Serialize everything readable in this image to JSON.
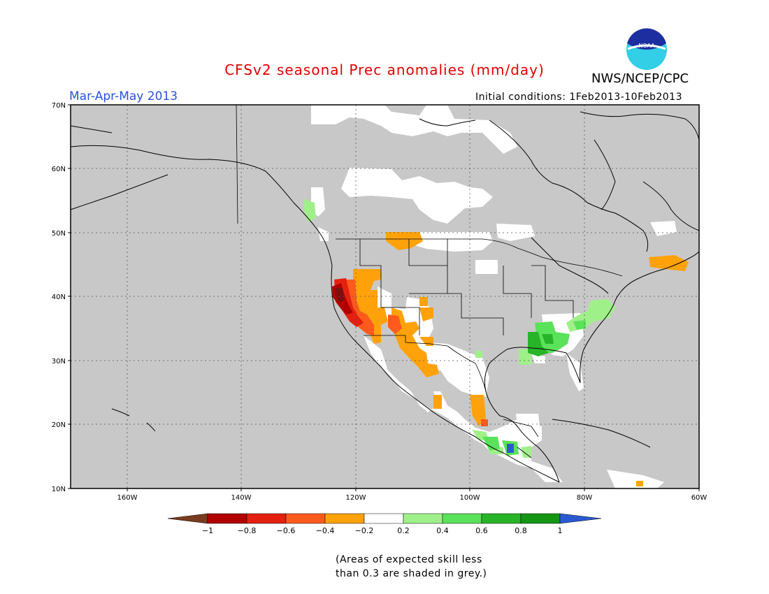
{
  "title": "CFSv2 seasonal Prec anomalies (mm/day)",
  "organization": "NWS/NCEP/CPC",
  "logo_text": "NOAA",
  "season": "Mar-Apr-May 2013",
  "initial_conditions": "Initial conditions: 1Feb2013-10Feb2013",
  "lat_labels": [
    "70N",
    "60N",
    "50N",
    "40N",
    "30N",
    "20N",
    "10N"
  ],
  "lon_labels": [
    "160W",
    "140W",
    "120W",
    "100W",
    "80W",
    "60W"
  ],
  "colorbar": {
    "tick_labels": [
      "-1",
      "-0.8",
      "-0.6",
      "-0.4",
      "-0.2",
      "0.2",
      "0.4",
      "0.6",
      "0.8",
      "1"
    ],
    "colors": [
      "#7a3b1e",
      "#b00000",
      "#e42010",
      "#ff5a1e",
      "#ffa20a",
      "#ffffff",
      "#a0f08a",
      "#5ae25a",
      "#28b428",
      "#149614",
      "#2a5ad2"
    ]
  },
  "note_lines": [
    "(Areas of expected skill less",
    "than 0.3 are shaded in grey.)"
  ],
  "map": {
    "background_color": "#c8c8c8",
    "extent": {
      "lon": [
        -170,
        -60
      ],
      "lat": [
        10,
        70
      ]
    }
  }
}
